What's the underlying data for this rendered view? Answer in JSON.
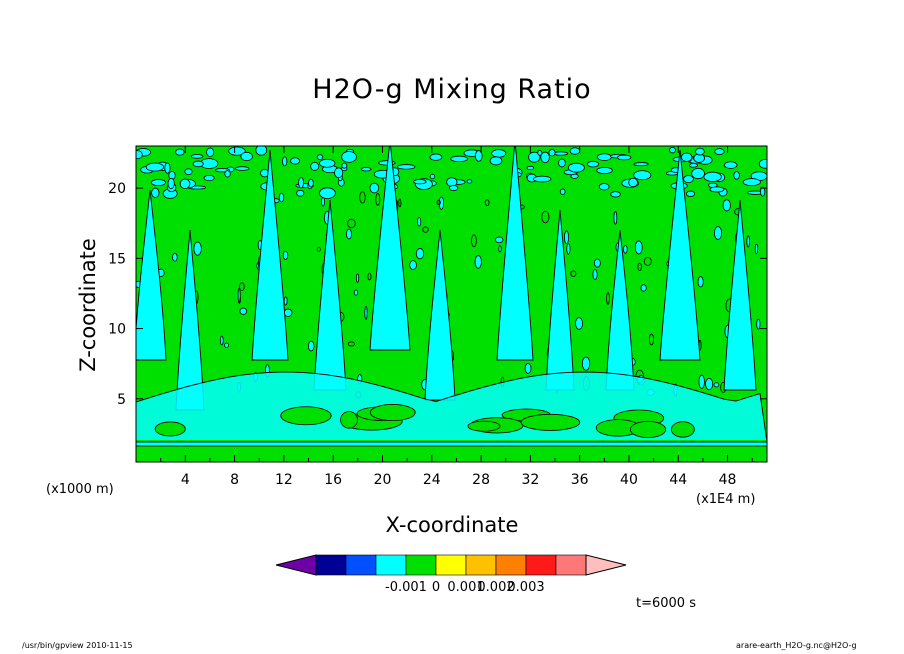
{
  "chart_data": {
    "type": "heatmap",
    "title": "H2O-g Mixing Ratio",
    "xlabel": "X-coordinate",
    "ylabel": "Z-coordinate",
    "x_unit": "(x1E4 m)",
    "y_unit": "(x1000 m)",
    "xlim": [
      0,
      51.2
    ],
    "ylim": [
      0.5,
      23
    ],
    "x_ticks": [
      "4",
      "8",
      "12",
      "16",
      "20",
      "24",
      "28",
      "32",
      "36",
      "40",
      "44",
      "48"
    ],
    "y_ticks": [
      "5",
      "10",
      "15",
      "20"
    ],
    "x_tick_values": [
      4,
      8,
      12,
      16,
      20,
      24,
      28,
      32,
      36,
      40,
      44,
      48
    ],
    "y_tick_values": [
      5,
      10,
      15,
      20
    ],
    "background_level_color": "#00e000",
    "contour_level_color": "#00ffff",
    "colorbar": {
      "colors": [
        "#6e00a8",
        "#000096",
        "#0050ff",
        "#00ffff",
        "#00e000",
        "#ffff00",
        "#ffc000",
        "#ff8000",
        "#ff1a1a",
        "#ff7878",
        "#ffbebe"
      ],
      "labels": [
        "-0.001",
        "0",
        "0.001",
        "0.002",
        "0.003"
      ],
      "label_boundary_index": [
        3,
        4,
        5,
        6,
        7
      ]
    },
    "time_label": "t=6000 s",
    "grid": false
  },
  "footer": {
    "left": "/usr/bin/gpview   2010-11-15",
    "right": "arare-earth_H2O-g.nc@H2O-g"
  }
}
